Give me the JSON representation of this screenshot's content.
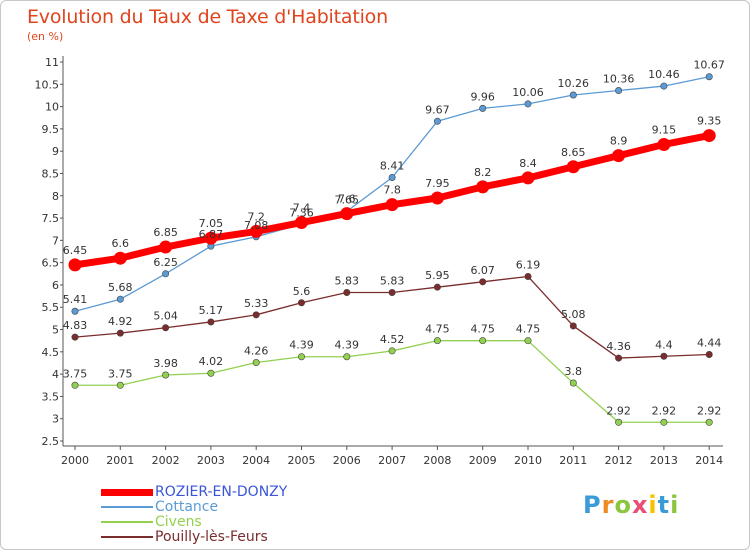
{
  "title": "Evolution du Taux de Taxe d'Habitation",
  "subtitle": "(en %)",
  "logo": {
    "text": "Proxiti",
    "letters": [
      {
        "ch": "P",
        "color": "#3a9bd9"
      },
      {
        "ch": "r",
        "color": "#f08a24"
      },
      {
        "ch": "o",
        "color": "#8cc63f"
      },
      {
        "ch": "x",
        "color": "#e94e77"
      },
      {
        "ch": "i",
        "color": "#f6c200"
      },
      {
        "ch": "t",
        "color": "#3a9bd9"
      },
      {
        "ch": "i",
        "color": "#8cc63f"
      }
    ]
  },
  "chart_data": {
    "type": "line",
    "title": "Evolution du Taux de Taxe d'Habitation",
    "subtitle": "(en %)",
    "xlabel": "",
    "ylabel": "",
    "x": [
      "2000",
      "2001",
      "2002",
      "2003",
      "2004",
      "2005",
      "2006",
      "2007",
      "2008",
      "2009",
      "2010",
      "2011",
      "2012",
      "2013",
      "2014"
    ],
    "ylim": [
      2.5,
      11
    ],
    "yticks": [
      2.5,
      3,
      3.5,
      4,
      4.5,
      5,
      5.5,
      6,
      6.5,
      7,
      7.5,
      8,
      8.5,
      9,
      9.5,
      10,
      10.5,
      11
    ],
    "ytick_labels": [
      "2.5",
      "3",
      "3.5",
      "4",
      "4.5",
      "5",
      "5.5",
      "6",
      "6.5",
      "7",
      "7.5",
      "8",
      "8.5",
      "9",
      "9.5",
      "10",
      "10.5",
      "11"
    ],
    "grid": false,
    "legend_position": "bottom-left",
    "series": [
      {
        "name": "ROZIER-EN-DONZY",
        "color": "#ff0000",
        "emphasis": true,
        "values": [
          6.45,
          6.6,
          6.85,
          7.05,
          7.2,
          7.4,
          7.6,
          7.8,
          7.95,
          8.2,
          8.4,
          8.65,
          8.9,
          9.15,
          9.35
        ],
        "labels": [
          "6.45",
          "6.6",
          "6.85",
          "7.05",
          "7.2",
          "7.4",
          "7.6",
          "7.8",
          "7.95",
          "8.2",
          "8.4",
          "8.65",
          "8.9",
          "9.15",
          "9.35"
        ]
      },
      {
        "name": "Cottance",
        "color": "#5b9bd5",
        "emphasis": false,
        "values": [
          5.41,
          5.68,
          6.25,
          6.87,
          7.08,
          7.36,
          7.65,
          8.41,
          9.67,
          9.96,
          10.06,
          10.26,
          10.36,
          10.46,
          10.67
        ],
        "labels": [
          "5.41",
          "5.68",
          "6.25",
          "6.87",
          "7.08",
          "7.36",
          "7.65",
          "8.41",
          "9.67",
          "9.96",
          "10.06",
          "10.26",
          "10.36",
          "10.46",
          "10.67"
        ]
      },
      {
        "name": "Civens",
        "color": "#92d050",
        "emphasis": false,
        "values": [
          3.75,
          3.75,
          3.98,
          4.02,
          4.26,
          4.39,
          4.39,
          4.52,
          4.75,
          4.75,
          4.75,
          3.8,
          2.92,
          2.92,
          2.92
        ],
        "labels": [
          "3.75",
          "3.75",
          "3.98",
          "4.02",
          "4.26",
          "4.39",
          "4.39",
          "4.52",
          "4.75",
          "4.75",
          "4.75",
          "3.8",
          "2.92",
          "2.92",
          "2.92"
        ]
      },
      {
        "name": "Pouilly-lès-Feurs",
        "color": "#7b2c2c",
        "emphasis": false,
        "values": [
          4.83,
          4.92,
          5.04,
          5.17,
          5.33,
          5.6,
          5.83,
          5.83,
          5.95,
          6.07,
          6.19,
          5.08,
          4.36,
          4.4,
          4.44
        ],
        "labels": [
          "4.83",
          "4.92",
          "5.04",
          "5.17",
          "5.33",
          "5.6",
          "5.83",
          "5.83",
          "5.95",
          "6.07",
          "6.19",
          "5.08",
          "4.36",
          "4.4",
          "4.44"
        ]
      }
    ]
  }
}
